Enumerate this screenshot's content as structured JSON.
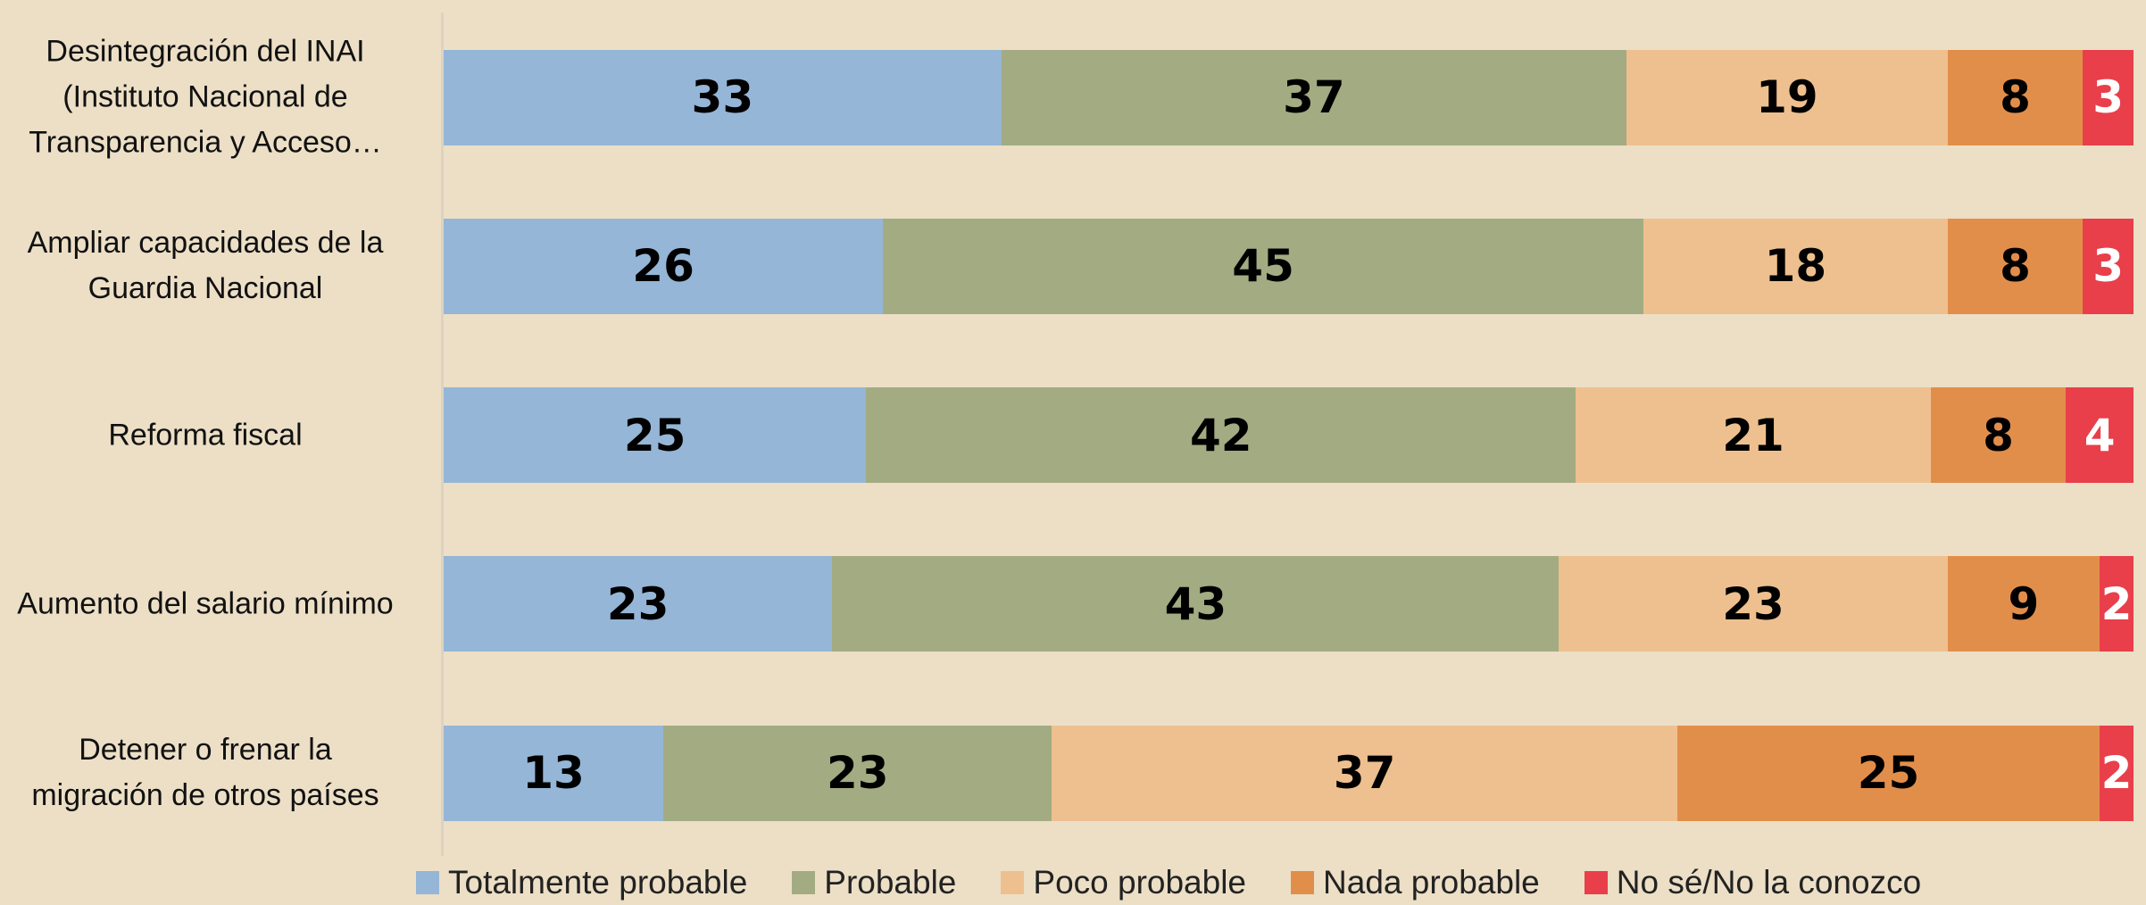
{
  "chart_data": {
    "type": "bar",
    "orientation": "horizontal",
    "stacked": true,
    "categories": [
      "Desintegración del INAI (Instituto Nacional de Transparencia y Acceso…",
      "Ampliar capacidades de la Guardia Nacional",
      "Reforma fiscal",
      "Aumento del salario mínimo",
      "Detener o frenar la migración de otros países"
    ],
    "xlim": [
      0,
      100
    ],
    "series": [
      {
        "name": "Totalmente probable",
        "color": "#95b6d6",
        "label_color": "#000000",
        "values": [
          33,
          26,
          25,
          23,
          13
        ]
      },
      {
        "name": "Probable",
        "color": "#a3ab82",
        "label_color": "#000000",
        "values": [
          37,
          45,
          42,
          43,
          23
        ]
      },
      {
        "name": "Poco probable",
        "color": "#eec08f",
        "label_color": "#000000",
        "values": [
          19,
          18,
          21,
          23,
          37
        ]
      },
      {
        "name": "Nada probable",
        "color": "#e28e4b",
        "label_color": "#000000",
        "values": [
          8,
          8,
          8,
          9,
          25
        ]
      },
      {
        "name": "No sé/No la conozco",
        "color": "#e83f4a",
        "label_color": "#ffffff",
        "values": [
          3,
          3,
          4,
          2,
          2
        ]
      }
    ],
    "legend": "bottom"
  }
}
